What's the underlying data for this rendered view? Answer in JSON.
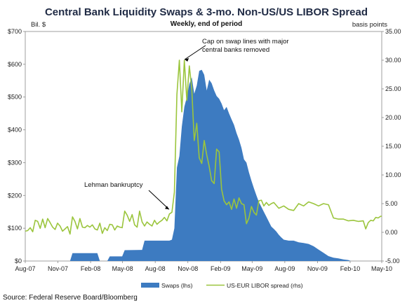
{
  "chart_data": {
    "type": "area",
    "title": "Central Bank Liquidity Swaps & 3-mo. Non-US/US LIBOR Spread",
    "subtitle": "Weekly, end of period",
    "y_left_unit": "Bil. $",
    "y_right_unit": "basis points",
    "x_ticks": [
      "Aug-07",
      "Nov-07",
      "Feb-08",
      "May-08",
      "Aug-08",
      "Nov-08",
      "Feb-09",
      "May-09",
      "Aug-09",
      "Nov-09",
      "Feb-10",
      "May-10"
    ],
    "y_left_ticks": [
      "$0",
      "$100",
      "$200",
      "$300",
      "$400",
      "$500",
      "$600",
      "$700"
    ],
    "y_right_ticks": [
      "-5.00",
      "0.00",
      "5.00",
      "10.00",
      "15.00",
      "20.00",
      "25.00",
      "30.00",
      "35.00"
    ],
    "y_left_range": [
      0,
      700
    ],
    "y_right_range": [
      -5,
      35
    ],
    "x_range": [
      "2007-08-01",
      "2010-05-01"
    ],
    "series": [
      {
        "name": "Swaps (lhs)",
        "kind": "area",
        "axis": "left",
        "color": "#3d7bc1",
        "points": [
          [
            "2007-08-01",
            0
          ],
          [
            "2007-12-05",
            0
          ],
          [
            "2007-12-12",
            24
          ],
          [
            "2008-02-20",
            24
          ],
          [
            "2008-02-27",
            0
          ],
          [
            "2008-03-19",
            0
          ],
          [
            "2008-03-26",
            14
          ],
          [
            "2008-04-30",
            14
          ],
          [
            "2008-05-07",
            33
          ],
          [
            "2008-06-25",
            34
          ],
          [
            "2008-07-02",
            62
          ],
          [
            "2008-09-10",
            62
          ],
          [
            "2008-09-17",
            65
          ],
          [
            "2008-09-24",
            100
          ],
          [
            "2008-10-01",
            285
          ],
          [
            "2008-10-08",
            320
          ],
          [
            "2008-10-15",
            410
          ],
          [
            "2008-10-22",
            470
          ],
          [
            "2008-10-29",
            500
          ],
          [
            "2008-11-05",
            540
          ],
          [
            "2008-11-12",
            560
          ],
          [
            "2008-11-19",
            510
          ],
          [
            "2008-11-26",
            535
          ],
          [
            "2008-12-03",
            580
          ],
          [
            "2008-12-10",
            583
          ],
          [
            "2008-12-17",
            568
          ],
          [
            "2008-12-24",
            520
          ],
          [
            "2008-12-31",
            553
          ],
          [
            "2009-01-07",
            542
          ],
          [
            "2009-01-14",
            520
          ],
          [
            "2009-01-21",
            503
          ],
          [
            "2009-01-28",
            495
          ],
          [
            "2009-02-04",
            480
          ],
          [
            "2009-02-11",
            460
          ],
          [
            "2009-02-18",
            470
          ],
          [
            "2009-02-25",
            450
          ],
          [
            "2009-03-04",
            432
          ],
          [
            "2009-03-11",
            415
          ],
          [
            "2009-03-18",
            390
          ],
          [
            "2009-03-25",
            370
          ],
          [
            "2009-04-01",
            345
          ],
          [
            "2009-04-08",
            310
          ],
          [
            "2009-04-15",
            300
          ],
          [
            "2009-04-22",
            270
          ],
          [
            "2009-04-29",
            245
          ],
          [
            "2009-05-06",
            222
          ],
          [
            "2009-05-13",
            200
          ],
          [
            "2009-05-20",
            180
          ],
          [
            "2009-05-27",
            165
          ],
          [
            "2009-06-03",
            150
          ],
          [
            "2009-06-10",
            135
          ],
          [
            "2009-06-17",
            120
          ],
          [
            "2009-06-24",
            105
          ],
          [
            "2009-07-01",
            98
          ],
          [
            "2009-07-08",
            90
          ],
          [
            "2009-07-15",
            80
          ],
          [
            "2009-07-22",
            72
          ],
          [
            "2009-07-29",
            65
          ],
          [
            "2009-08-12",
            62
          ],
          [
            "2009-08-26",
            62
          ],
          [
            "2009-09-09",
            57
          ],
          [
            "2009-09-23",
            55
          ],
          [
            "2009-10-07",
            52
          ],
          [
            "2009-10-21",
            45
          ],
          [
            "2009-11-04",
            35
          ],
          [
            "2009-11-18",
            25
          ],
          [
            "2009-12-02",
            15
          ],
          [
            "2009-12-16",
            10
          ],
          [
            "2009-12-30",
            8
          ],
          [
            "2010-01-13",
            5
          ],
          [
            "2010-01-27",
            3
          ],
          [
            "2010-02-03",
            0
          ],
          [
            "2010-05-01",
            0
          ]
        ]
      },
      {
        "name": "US-EUR LIBOR spread (rhs)",
        "kind": "line",
        "axis": "right",
        "color": "#9bc53d",
        "points": [
          [
            "2007-08-01",
            0.2
          ],
          [
            "2007-08-08",
            0.3
          ],
          [
            "2007-08-15",
            0.8
          ],
          [
            "2007-08-22",
            0.1
          ],
          [
            "2007-08-29",
            2.1
          ],
          [
            "2007-09-05",
            1.9
          ],
          [
            "2007-09-12",
            0.7
          ],
          [
            "2007-09-19",
            2.3
          ],
          [
            "2007-09-26",
            0.8
          ],
          [
            "2007-10-03",
            2.4
          ],
          [
            "2007-10-10",
            1.7
          ],
          [
            "2007-10-17",
            0.9
          ],
          [
            "2007-10-24",
            0.5
          ],
          [
            "2007-10-31",
            1.6
          ],
          [
            "2007-11-07",
            1.1
          ],
          [
            "2007-11-14",
            0.2
          ],
          [
            "2007-11-21",
            0.6
          ],
          [
            "2007-11-28",
            1.0
          ],
          [
            "2007-12-05",
            -0.3
          ],
          [
            "2007-12-12",
            2.7
          ],
          [
            "2007-12-19",
            1.9
          ],
          [
            "2007-12-26",
            0.6
          ],
          [
            "2008-01-02",
            2.4
          ],
          [
            "2008-01-09",
            0.9
          ],
          [
            "2008-01-16",
            0.8
          ],
          [
            "2008-01-23",
            1.2
          ],
          [
            "2008-01-30",
            0.9
          ],
          [
            "2008-02-06",
            1.3
          ],
          [
            "2008-02-13",
            0.6
          ],
          [
            "2008-02-20",
            0.4
          ],
          [
            "2008-02-27",
            1.6
          ],
          [
            "2008-03-05",
            -0.2
          ],
          [
            "2008-03-12",
            0.8
          ],
          [
            "2008-03-19",
            0.3
          ],
          [
            "2008-03-26",
            1.4
          ],
          [
            "2008-04-02",
            1.3
          ],
          [
            "2008-04-09",
            0.4
          ],
          [
            "2008-04-16",
            1.1
          ],
          [
            "2008-04-23",
            0.9
          ],
          [
            "2008-04-30",
            0.8
          ],
          [
            "2008-05-07",
            3.7
          ],
          [
            "2008-05-14",
            3.0
          ],
          [
            "2008-05-21",
            1.9
          ],
          [
            "2008-05-28",
            3.1
          ],
          [
            "2008-06-04",
            1.3
          ],
          [
            "2008-06-11",
            0.9
          ],
          [
            "2008-06-18",
            3.7
          ],
          [
            "2008-06-25",
            1.8
          ],
          [
            "2008-07-02",
            1.1
          ],
          [
            "2008-07-09",
            1.8
          ],
          [
            "2008-07-16",
            1.4
          ],
          [
            "2008-07-23",
            1.1
          ],
          [
            "2008-07-30",
            2.1
          ],
          [
            "2008-08-06",
            1.4
          ],
          [
            "2008-08-13",
            1.8
          ],
          [
            "2008-08-20",
            2.1
          ],
          [
            "2008-08-27",
            2.6
          ],
          [
            "2008-09-03",
            2.0
          ],
          [
            "2008-09-10",
            3.2
          ],
          [
            "2008-09-17",
            3.5
          ],
          [
            "2008-09-24",
            7.0
          ],
          [
            "2008-10-01",
            24.0
          ],
          [
            "2008-10-08",
            30.0
          ],
          [
            "2008-10-15",
            21.0
          ],
          [
            "2008-10-22",
            30.0
          ],
          [
            "2008-10-29",
            23.0
          ],
          [
            "2008-11-05",
            29.0
          ],
          [
            "2008-11-12",
            25.0
          ],
          [
            "2008-11-19",
            16.0
          ],
          [
            "2008-11-26",
            19.0
          ],
          [
            "2008-12-03",
            13.0
          ],
          [
            "2008-12-10",
            12.0
          ],
          [
            "2008-12-17",
            16.0
          ],
          [
            "2008-12-24",
            13.5
          ],
          [
            "2008-12-31",
            11.5
          ],
          [
            "2009-01-07",
            9.0
          ],
          [
            "2009-01-14",
            8.5
          ],
          [
            "2009-01-21",
            14.5
          ],
          [
            "2009-01-28",
            14.0
          ],
          [
            "2009-02-04",
            7.5
          ],
          [
            "2009-02-11",
            5.5
          ],
          [
            "2009-02-18",
            4.8
          ],
          [
            "2009-02-25",
            5.3
          ],
          [
            "2009-03-04",
            4.0
          ],
          [
            "2009-03-11",
            5.8
          ],
          [
            "2009-03-18",
            4.2
          ],
          [
            "2009-03-25",
            6.0
          ],
          [
            "2009-04-01",
            5.0
          ],
          [
            "2009-04-08",
            4.8
          ],
          [
            "2009-04-15",
            1.5
          ],
          [
            "2009-04-22",
            2.5
          ],
          [
            "2009-04-29",
            4.5
          ],
          [
            "2009-05-06",
            3.5
          ],
          [
            "2009-05-13",
            3.0
          ],
          [
            "2009-05-20",
            5.5
          ],
          [
            "2009-05-27",
            5.6
          ],
          [
            "2009-06-03",
            4.6
          ],
          [
            "2009-06-10",
            5.2
          ],
          [
            "2009-06-17",
            4.7
          ],
          [
            "2009-06-24",
            5.0
          ],
          [
            "2009-07-01",
            5.2
          ],
          [
            "2009-07-15",
            4.2
          ],
          [
            "2009-07-29",
            4.6
          ],
          [
            "2009-08-12",
            4.0
          ],
          [
            "2009-08-26",
            3.8
          ],
          [
            "2009-09-09",
            5.0
          ],
          [
            "2009-09-23",
            4.6
          ],
          [
            "2009-10-07",
            5.3
          ],
          [
            "2009-10-21",
            5.0
          ],
          [
            "2009-11-04",
            4.6
          ],
          [
            "2009-11-18",
            5.0
          ],
          [
            "2009-12-02",
            4.8
          ],
          [
            "2009-12-16",
            2.5
          ],
          [
            "2009-12-30",
            2.3
          ],
          [
            "2010-01-13",
            2.3
          ],
          [
            "2010-01-27",
            2.0
          ],
          [
            "2010-02-10",
            2.1
          ],
          [
            "2010-02-24",
            1.9
          ],
          [
            "2010-03-10",
            2.0
          ],
          [
            "2010-03-17",
            0.6
          ],
          [
            "2010-03-24",
            1.7
          ],
          [
            "2010-03-31",
            2.1
          ],
          [
            "2010-04-07",
            2.0
          ],
          [
            "2010-04-14",
            2.6
          ],
          [
            "2010-04-21",
            2.5
          ],
          [
            "2010-04-28",
            2.8
          ],
          [
            "2010-05-01",
            2.8
          ]
        ]
      }
    ],
    "annotations": [
      {
        "text_lines": [
          "Cap on swap lines with major",
          "central banks removed"
        ],
        "date": "2008-10-15",
        "value_rhs": 30
      },
      {
        "text_lines": [
          "Lehman bankruptcy"
        ],
        "date": "2008-09-15",
        "value_rhs": 3.5
      }
    ],
    "legend_position": "bottom",
    "grid": false
  },
  "source": "Source: Federal Reserve Board/Bloomberg"
}
